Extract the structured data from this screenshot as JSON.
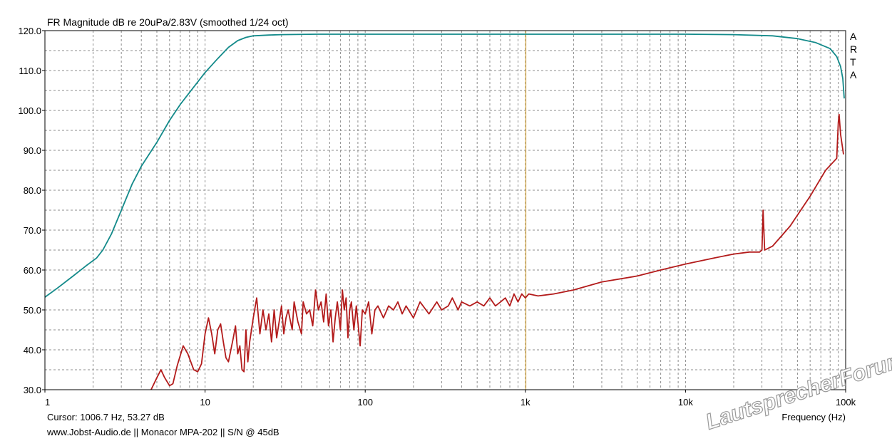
{
  "chart_data": {
    "type": "line",
    "title": "FR Magnitude dB re 20uPa/2.83V (smoothed 1/24 oct)",
    "xlabel": "Frequency (Hz)",
    "ylabel": "",
    "x_scale": "log",
    "xlim": [
      1,
      100000
    ],
    "ylim": [
      30,
      120
    ],
    "grid": true,
    "x_tick_labels": [
      {
        "value": 1,
        "label": "1"
      },
      {
        "value": 10,
        "label": "10"
      },
      {
        "value": 100,
        "label": "100"
      },
      {
        "value": 1000,
        "label": "1k"
      },
      {
        "value": 10000,
        "label": "10k"
      },
      {
        "value": 100000,
        "label": "100k"
      }
    ],
    "y_tick_labels": [
      {
        "value": 30,
        "label": "30.0"
      },
      {
        "value": 40,
        "label": "40.0"
      },
      {
        "value": 50,
        "label": "50.0"
      },
      {
        "value": 60,
        "label": "60.0"
      },
      {
        "value": 70,
        "label": "70.0"
      },
      {
        "value": 80,
        "label": "80.0"
      },
      {
        "value": 90,
        "label": "90.0"
      },
      {
        "value": 100,
        "label": "100.0"
      },
      {
        "value": 110,
        "label": "110.0"
      },
      {
        "value": 120,
        "label": "120.0"
      }
    ],
    "cursor_x": 1006.7,
    "series": [
      {
        "color": "#138a8a",
        "points": [
          [
            1,
            53.2
          ],
          [
            1.2,
            55.5
          ],
          [
            1.5,
            58.5
          ],
          [
            1.8,
            61
          ],
          [
            2.1,
            63
          ],
          [
            2.3,
            65
          ],
          [
            2.6,
            69
          ],
          [
            3,
            75
          ],
          [
            3.5,
            81.5
          ],
          [
            4,
            86
          ],
          [
            5,
            92
          ],
          [
            6,
            97.5
          ],
          [
            7,
            101.5
          ],
          [
            8,
            104.5
          ],
          [
            10,
            109.5
          ],
          [
            12,
            113
          ],
          [
            14,
            115.8
          ],
          [
            16,
            117.5
          ],
          [
            18,
            118.3
          ],
          [
            20,
            118.7
          ],
          [
            25,
            118.9
          ],
          [
            30,
            119
          ],
          [
            50,
            119.1
          ],
          [
            100,
            119.1
          ],
          [
            1000,
            119.1
          ],
          [
            10000,
            119.1
          ],
          [
            20000,
            119
          ],
          [
            35000,
            118.7
          ],
          [
            50000,
            118
          ],
          [
            65000,
            117
          ],
          [
            80000,
            115.5
          ],
          [
            88000,
            113.5
          ],
          [
            93000,
            111
          ],
          [
            96000,
            108
          ],
          [
            98000,
            103
          ]
        ]
      },
      {
        "color": "#b31b1b",
        "points": [
          [
            4.6,
            30
          ],
          [
            5,
            33
          ],
          [
            5.3,
            35
          ],
          [
            5.6,
            33
          ],
          [
            6,
            31
          ],
          [
            6.3,
            31.5
          ],
          [
            6.7,
            36
          ],
          [
            7.3,
            41
          ],
          [
            7.8,
            39
          ],
          [
            8.5,
            35
          ],
          [
            9,
            34.5
          ],
          [
            9.5,
            36.5
          ],
          [
            10,
            44
          ],
          [
            10.5,
            48
          ],
          [
            11,
            44
          ],
          [
            11.5,
            39
          ],
          [
            12,
            45
          ],
          [
            12.5,
            46.5
          ],
          [
            13,
            42
          ],
          [
            13.5,
            38
          ],
          [
            14,
            37
          ],
          [
            14.5,
            40
          ],
          [
            15,
            43
          ],
          [
            15.5,
            46
          ],
          [
            16,
            39
          ],
          [
            16.5,
            41
          ],
          [
            17,
            35
          ],
          [
            17.5,
            34.5
          ],
          [
            18,
            45
          ],
          [
            18.5,
            37
          ],
          [
            19,
            42
          ],
          [
            20,
            48
          ],
          [
            21,
            53
          ],
          [
            22,
            44
          ],
          [
            23,
            50
          ],
          [
            24,
            45
          ],
          [
            25,
            49
          ],
          [
            26,
            42
          ],
          [
            27,
            50
          ],
          [
            28,
            43
          ],
          [
            29,
            47
          ],
          [
            30,
            51
          ],
          [
            31,
            44
          ],
          [
            32,
            48
          ],
          [
            33,
            50
          ],
          [
            35,
            45
          ],
          [
            36,
            52
          ],
          [
            38,
            47
          ],
          [
            40,
            44
          ],
          [
            41,
            52
          ],
          [
            43,
            49
          ],
          [
            45,
            50
          ],
          [
            47,
            46
          ],
          [
            49,
            55
          ],
          [
            51,
            50
          ],
          [
            53,
            52
          ],
          [
            55,
            47
          ],
          [
            57,
            54
          ],
          [
            59,
            46
          ],
          [
            61,
            50
          ],
          [
            63,
            42
          ],
          [
            65,
            48
          ],
          [
            67,
            52
          ],
          [
            70,
            45
          ],
          [
            72,
            55
          ],
          [
            74,
            50
          ],
          [
            76,
            53
          ],
          [
            78,
            43
          ],
          [
            80,
            50
          ],
          [
            82,
            52
          ],
          [
            85,
            45
          ],
          [
            88,
            51
          ],
          [
            90,
            47
          ],
          [
            93,
            41
          ],
          [
            96,
            50
          ],
          [
            100,
            49
          ],
          [
            105,
            52
          ],
          [
            110,
            44
          ],
          [
            115,
            50
          ],
          [
            120,
            51
          ],
          [
            130,
            48
          ],
          [
            140,
            51
          ],
          [
            150,
            50
          ],
          [
            160,
            52
          ],
          [
            170,
            49
          ],
          [
            180,
            51
          ],
          [
            200,
            48
          ],
          [
            220,
            52
          ],
          [
            250,
            49
          ],
          [
            280,
            52
          ],
          [
            300,
            50
          ],
          [
            330,
            51
          ],
          [
            350,
            53
          ],
          [
            380,
            50
          ],
          [
            400,
            52
          ],
          [
            450,
            51
          ],
          [
            500,
            52
          ],
          [
            550,
            51
          ],
          [
            600,
            53
          ],
          [
            650,
            51
          ],
          [
            700,
            52
          ],
          [
            750,
            53
          ],
          [
            800,
            51
          ],
          [
            850,
            54
          ],
          [
            900,
            52
          ],
          [
            950,
            54
          ],
          [
            1000,
            53
          ],
          [
            1050,
            54
          ],
          [
            1200,
            53.5
          ],
          [
            1500,
            54
          ],
          [
            2000,
            55
          ],
          [
            3000,
            57
          ],
          [
            5000,
            58.5
          ],
          [
            7000,
            60
          ],
          [
            10000,
            61.5
          ],
          [
            15000,
            63
          ],
          [
            20000,
            64
          ],
          [
            25000,
            64.5
          ],
          [
            29000,
            64.5
          ],
          [
            30000,
            65
          ],
          [
            30500,
            75
          ],
          [
            31200,
            65
          ],
          [
            35000,
            66
          ],
          [
            45000,
            71
          ],
          [
            60000,
            78.5
          ],
          [
            75000,
            85
          ],
          [
            88000,
            88
          ],
          [
            90000,
            97
          ],
          [
            91000,
            99
          ],
          [
            93000,
            94
          ],
          [
            97000,
            89
          ]
        ]
      }
    ]
  },
  "labels": {
    "cursor": "Cursor: 1006.7 Hz, 53.27 dB",
    "source": "www.Jobst-Audio.de  ||  Monacor MPA-202  ||  S/N @ 45dB",
    "arta_letters": [
      "A",
      "R",
      "T",
      "A"
    ],
    "watermark": "LautsprecherForum.eu"
  },
  "colors": {
    "background": "#ffffff",
    "frame": "#000000",
    "grid": "#8c8c8c",
    "cursor_line": "#d4a84a"
  }
}
